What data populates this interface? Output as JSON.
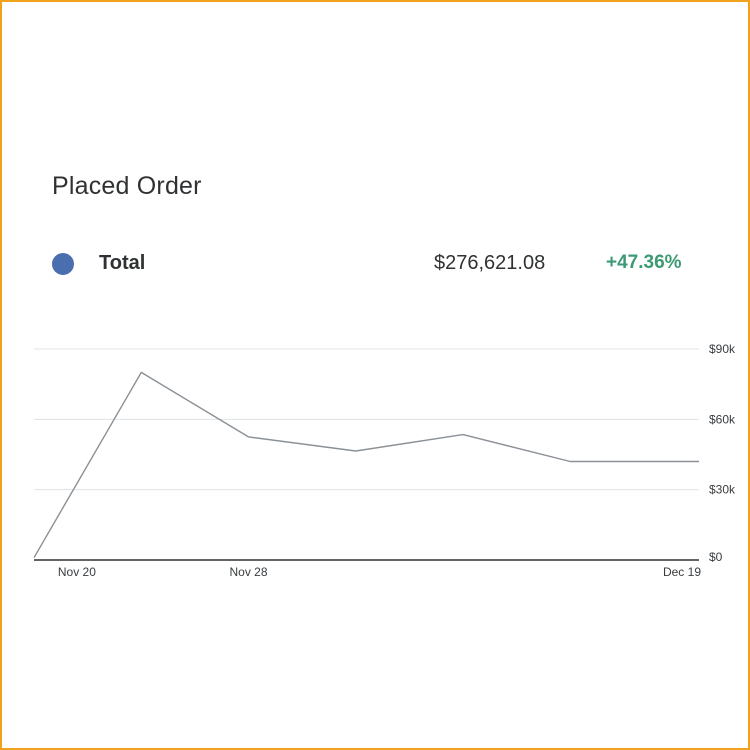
{
  "header": {
    "title": "Placed Order"
  },
  "legend": {
    "label": "Total",
    "total": "$276,621.08",
    "change": "+47.36%"
  },
  "colors": {
    "legend_dot": "#4a6fae",
    "change_positive": "#3d9a74",
    "line": "#8a9096",
    "grid": "#dfe3e6",
    "axis": "#2f3133"
  },
  "chart_data": {
    "type": "line",
    "series": [
      {
        "name": "Total",
        "x": [
          "Nov 18",
          "Nov 23",
          "Nov 28",
          "Dec 3",
          "Dec 8",
          "Dec 13",
          "Dec 19"
        ],
        "values": [
          1000,
          80000,
          52500,
          46500,
          53500,
          42000,
          42000
        ]
      }
    ],
    "x_tick_labels": [
      "Nov 20",
      "Nov 28",
      "Dec 19"
    ],
    "y_tick_labels": [
      "$90k",
      "$60k",
      "$30k",
      "$0"
    ],
    "y_ticks": [
      90000,
      60000,
      30000,
      0
    ],
    "ylim": [
      0,
      90000
    ],
    "grid": true
  }
}
